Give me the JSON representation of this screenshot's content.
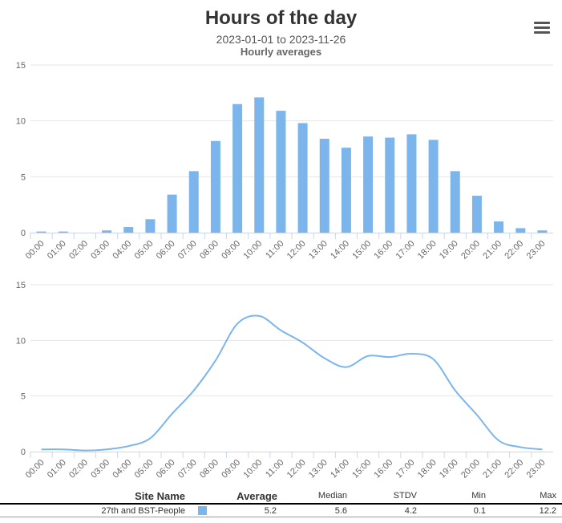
{
  "header": {
    "title": "Hours of the day",
    "subtitle": "2023-01-01 to 2023-11-26",
    "subtitle2": "Hourly averages",
    "menu_icon": "hamburger-menu-icon"
  },
  "chart_data": [
    {
      "type": "bar",
      "categories": [
        "00:00",
        "01:00",
        "02:00",
        "03:00",
        "04:00",
        "05:00",
        "06:00",
        "07:00",
        "08:00",
        "09:00",
        "10:00",
        "11:00",
        "12:00",
        "13:00",
        "14:00",
        "15:00",
        "16:00",
        "17:00",
        "18:00",
        "19:00",
        "20:00",
        "21:00",
        "22:00",
        "23:00"
      ],
      "values": [
        0.1,
        0.1,
        0,
        0.2,
        0.5,
        1.2,
        3.4,
        5.5,
        8.2,
        11.5,
        12.1,
        10.9,
        9.8,
        8.4,
        7.6,
        8.6,
        8.5,
        8.8,
        8.3,
        5.5,
        3.3,
        1.0,
        0.4,
        0.2
      ],
      "ylim": [
        0,
        15
      ],
      "yticks": [
        "0",
        "5",
        "10",
        "15"
      ],
      "grid": true,
      "color": "#7cb5ec"
    },
    {
      "type": "line",
      "categories": [
        "00:00",
        "01:00",
        "02:00",
        "03:00",
        "04:00",
        "05:00",
        "06:00",
        "07:00",
        "08:00",
        "09:00",
        "10:00",
        "11:00",
        "12:00",
        "13:00",
        "14:00",
        "15:00",
        "16:00",
        "17:00",
        "18:00",
        "19:00",
        "20:00",
        "21:00",
        "22:00",
        "23:00"
      ],
      "values": [
        0.2,
        0.2,
        0.1,
        0.2,
        0.5,
        1.2,
        3.4,
        5.5,
        8.2,
        11.5,
        12.2,
        10.9,
        9.8,
        8.4,
        7.6,
        8.6,
        8.5,
        8.8,
        8.3,
        5.5,
        3.3,
        1.0,
        0.4,
        0.2
      ],
      "ylim": [
        0,
        15
      ],
      "yticks": [
        "0",
        "5",
        "10",
        "15"
      ],
      "grid": true,
      "color": "#7cb5ec",
      "smooth": true
    }
  ],
  "table": {
    "headers": {
      "site": "Site Name",
      "average": "Average",
      "median": "Median",
      "stdv": "STDV",
      "min": "Min",
      "max": "Max"
    },
    "rows": [
      {
        "site": "27th and BST-People",
        "color": "#7cb5ec",
        "average": "5.2",
        "median": "5.6",
        "stdv": "4.2",
        "min": "0.1",
        "max": "12.2"
      }
    ]
  }
}
